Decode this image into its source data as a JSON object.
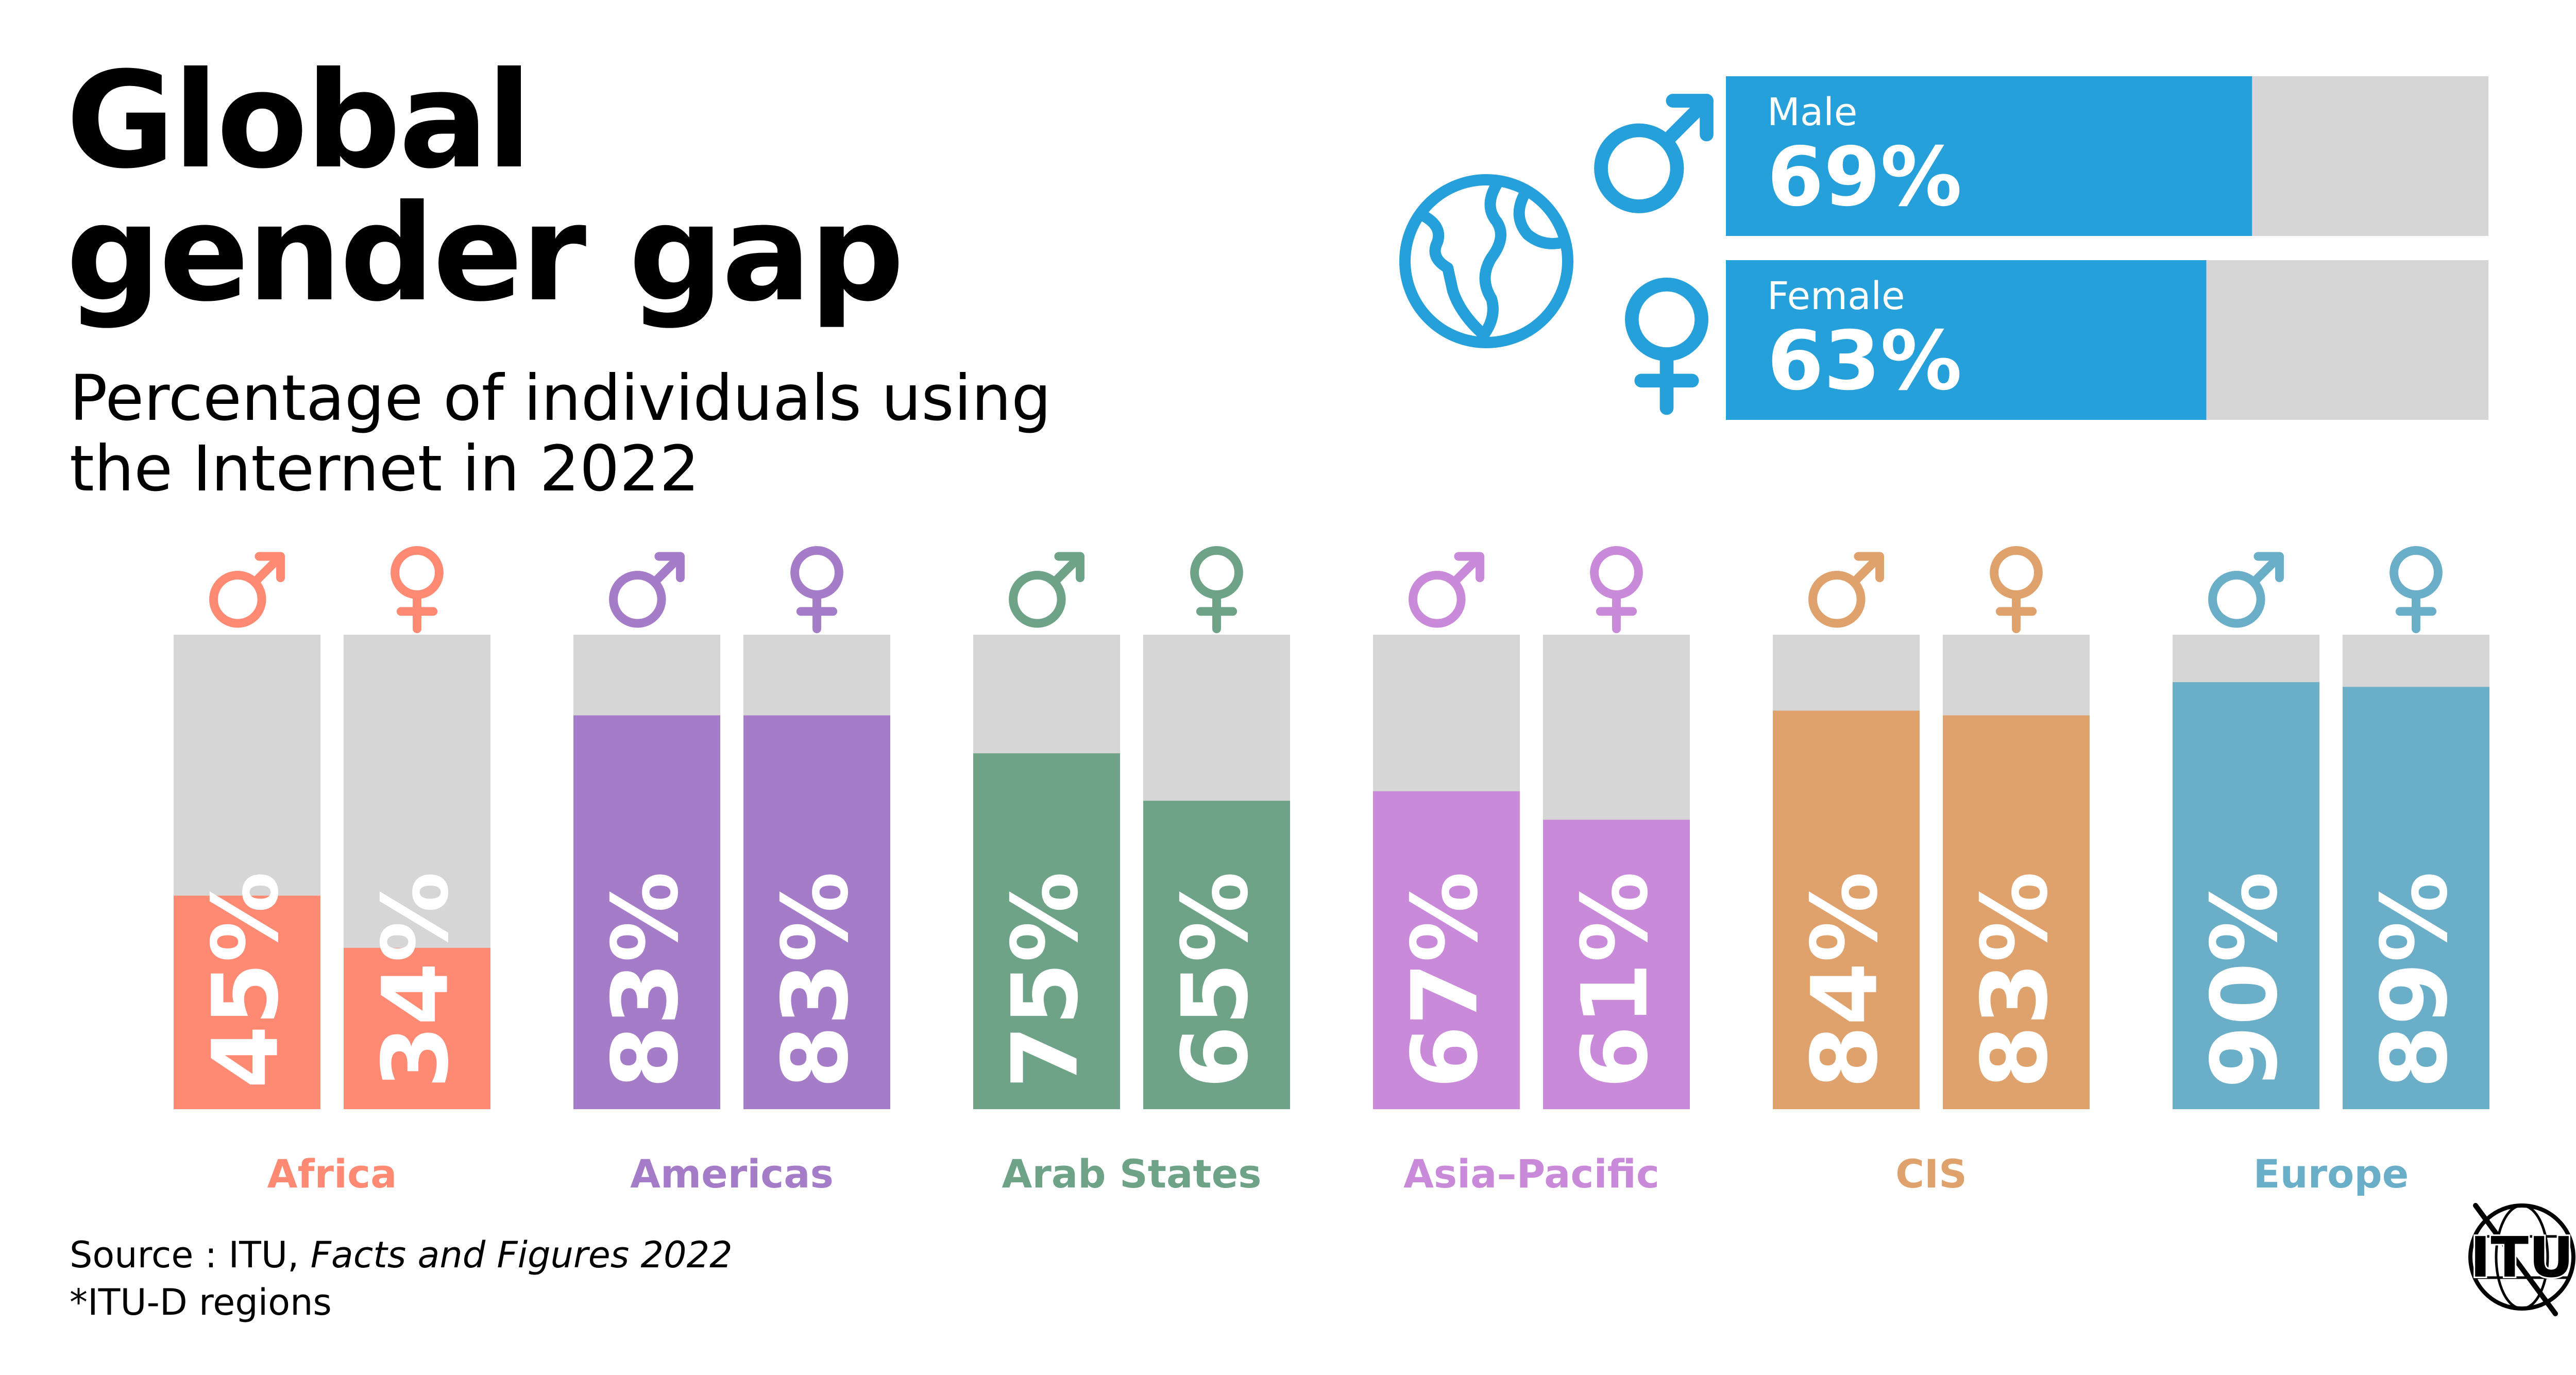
{
  "title": {
    "line1": "Global",
    "line2": "gender gap"
  },
  "subtitle": {
    "line1": "Percentage of individuals using",
    "line2": "the Internet in 2022"
  },
  "source": {
    "prefix": "Source : ITU, ",
    "publication": "Facts and Figures 2022",
    "note": "*ITU-D regions"
  },
  "logo": {
    "text": "ITU",
    "icon": "itu-globe-logo"
  },
  "colors": {
    "global": "#26a0da",
    "track": "#d6d6d6",
    "Africa": "#ff8a73",
    "Americas": "#a57cc8",
    "Arab States": "#6fa388",
    "Asia-Pacific": "#c98ad9",
    "CIS": "#dfa26d",
    "Europe": "#6aaec7"
  },
  "icons": {
    "globe": "globe-icon",
    "male": "male-symbol-icon",
    "female": "female-symbol-icon"
  },
  "chart_data": [
    {
      "type": "bar",
      "orientation": "horizontal",
      "categories": [
        "Male",
        "Female"
      ],
      "values": [
        69,
        63
      ],
      "labels": [
        "69%",
        "63%"
      ],
      "xlim": [
        0,
        100
      ]
    },
    {
      "type": "bar",
      "orientation": "vertical",
      "categories": [
        "Africa",
        "Americas",
        "Arab States",
        "Asia–Pacific",
        "CIS",
        "Europe"
      ],
      "series": [
        {
          "name": "Male",
          "values": [
            45,
            83,
            75,
            67,
            84,
            90
          ],
          "labels": [
            "45%",
            "83%",
            "75%",
            "67%",
            "84%",
            "90%"
          ]
        },
        {
          "name": "Female",
          "values": [
            34,
            83,
            65,
            61,
            83,
            89
          ],
          "labels": [
            "34%",
            "83%",
            "65%",
            "61%",
            "83%",
            "89%"
          ]
        }
      ],
      "ylim": [
        0,
        100
      ]
    }
  ]
}
